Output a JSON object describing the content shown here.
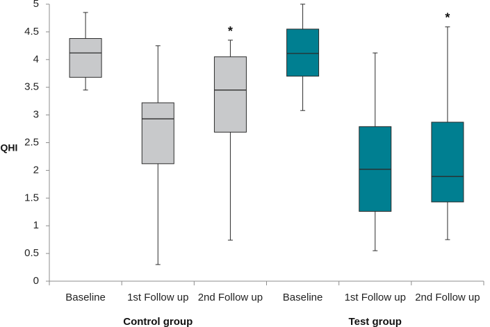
{
  "chart_data": {
    "type": "boxplot",
    "title": "",
    "ylabel": "QHI",
    "xlabel": "",
    "ylim": [
      0,
      5
    ],
    "y_ticks": [
      "0",
      "0.5",
      "1",
      "1.5",
      "2",
      "2.5",
      "3",
      "3.5",
      "4",
      "4.5",
      "5"
    ],
    "grid": false,
    "categories": [
      "Baseline",
      "1st Follow up",
      "2nd Follow up",
      "Baseline",
      "1st Follow up",
      "2nd Follow up"
    ],
    "groups": [
      {
        "label": "Control  group",
        "color": "#c8c9cb",
        "categories": [
          0,
          1,
          2
        ]
      },
      {
        "label": "Test group",
        "color": "#007f91",
        "categories": [
          3,
          4,
          5
        ]
      }
    ],
    "boxes": [
      {
        "category": "Baseline",
        "group": "Control  group",
        "min": 3.45,
        "q1": 3.68,
        "median": 4.12,
        "q3": 4.38,
        "max": 4.85,
        "annotation": ""
      },
      {
        "category": "1st Follow up",
        "group": "Control  group",
        "min": 0.3,
        "q1": 2.12,
        "median": 2.93,
        "q3": 3.22,
        "max": 4.25,
        "annotation": ""
      },
      {
        "category": "2nd Follow up",
        "group": "Control  group",
        "min": 0.74,
        "q1": 2.69,
        "median": 3.45,
        "q3": 4.05,
        "max": 4.35,
        "annotation": "*"
      },
      {
        "category": "Baseline",
        "group": "Test group",
        "min": 3.08,
        "q1": 3.7,
        "median": 4.11,
        "q3": 4.55,
        "max": 5.0,
        "annotation": ""
      },
      {
        "category": "1st Follow up",
        "group": "Test group",
        "min": 0.55,
        "q1": 1.26,
        "median": 2.02,
        "q3": 2.79,
        "max": 4.12,
        "annotation": ""
      },
      {
        "category": "2nd Follow up",
        "group": "Test group",
        "min": 0.75,
        "q1": 1.43,
        "median": 1.89,
        "q3": 2.87,
        "max": 4.59,
        "annotation": "*"
      }
    ]
  }
}
